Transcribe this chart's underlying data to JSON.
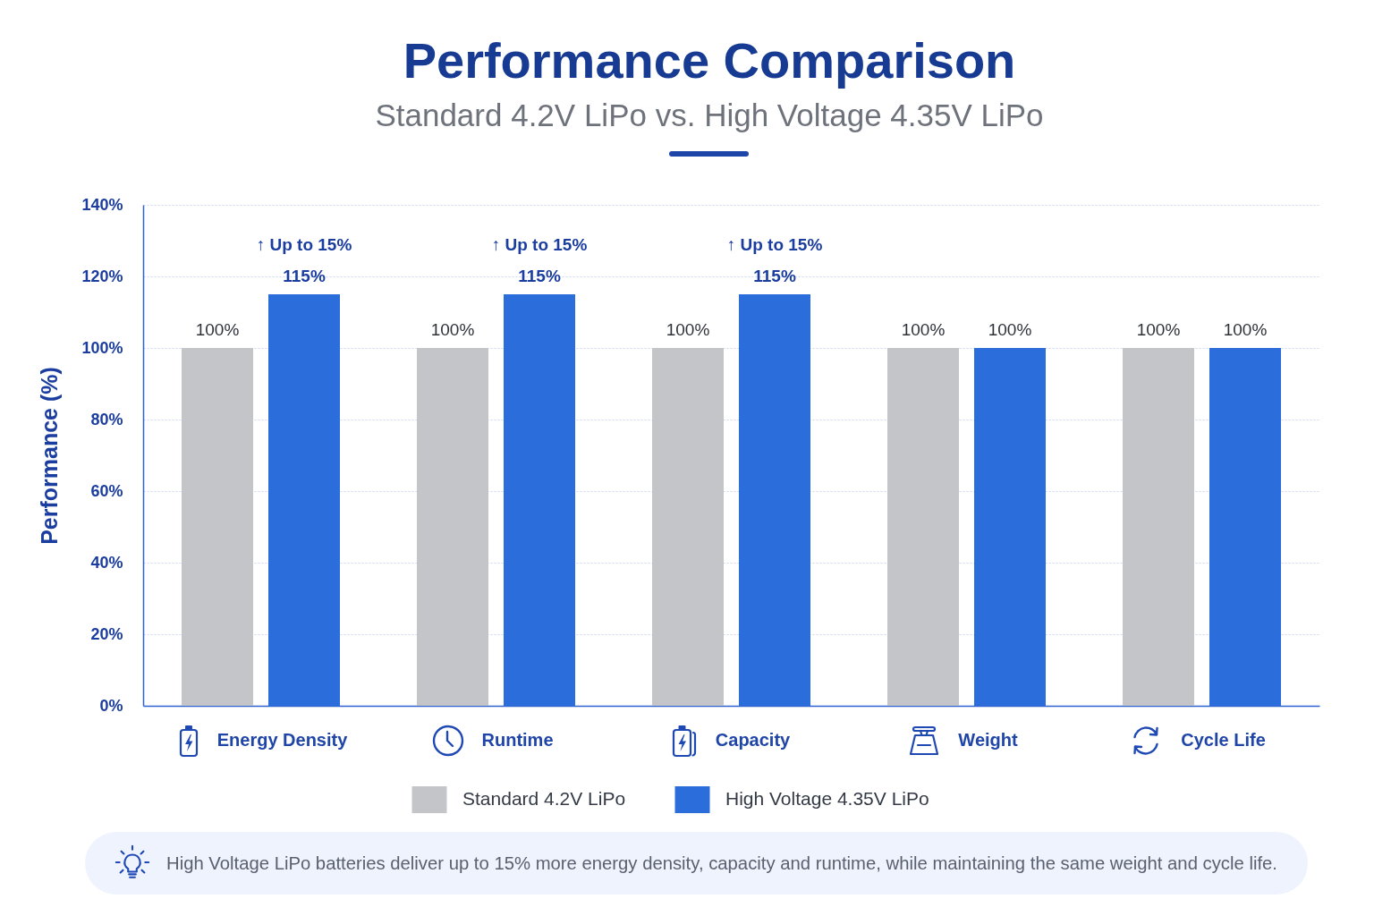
{
  "chart_data": {
    "type": "bar",
    "title": "Performance Comparison",
    "subtitle": "Standard 4.2V LiPo vs. High Voltage 4.35V LiPo",
    "ylabel": "Performance (%)",
    "categories": [
      "Energy Density",
      "Runtime",
      "Capacity",
      "Weight",
      "Cycle Life"
    ],
    "series": [
      {
        "name": "Standard 4.2V LiPo",
        "color": "#c4c5c9",
        "values": [
          100,
          100,
          100,
          100,
          100
        ],
        "value_labels": [
          "100%",
          "100%",
          "100%",
          "100%",
          "100%"
        ]
      },
      {
        "name": "High Voltage 4.35V LiPo",
        "color": "#2b6ddb",
        "values": [
          115,
          115,
          115,
          100,
          100
        ],
        "value_labels": [
          "115%",
          "115%",
          "115%",
          "100%",
          "100%"
        ]
      }
    ],
    "ylim": [
      0,
      140
    ],
    "yticks": [
      {
        "value": 0,
        "label": "0%"
      },
      {
        "value": 20,
        "label": "20%"
      },
      {
        "value": 40,
        "label": "40%"
      },
      {
        "value": 60,
        "label": "60%"
      },
      {
        "value": 80,
        "label": "80%"
      },
      {
        "value": 100,
        "label": "100%"
      },
      {
        "value": 120,
        "label": "120%"
      },
      {
        "value": 140,
        "label": "140%"
      }
    ],
    "grid": "y",
    "legend": "bottom",
    "annotations": [
      "↑ Up to 15%",
      "↑ Up to 15%",
      "↑ Up to 15%",
      "High Voltage LiPo batteries deliver up to 15% more energy density, capacity and runtime, while maintaining the same weight and cycle life."
    ]
  }
}
